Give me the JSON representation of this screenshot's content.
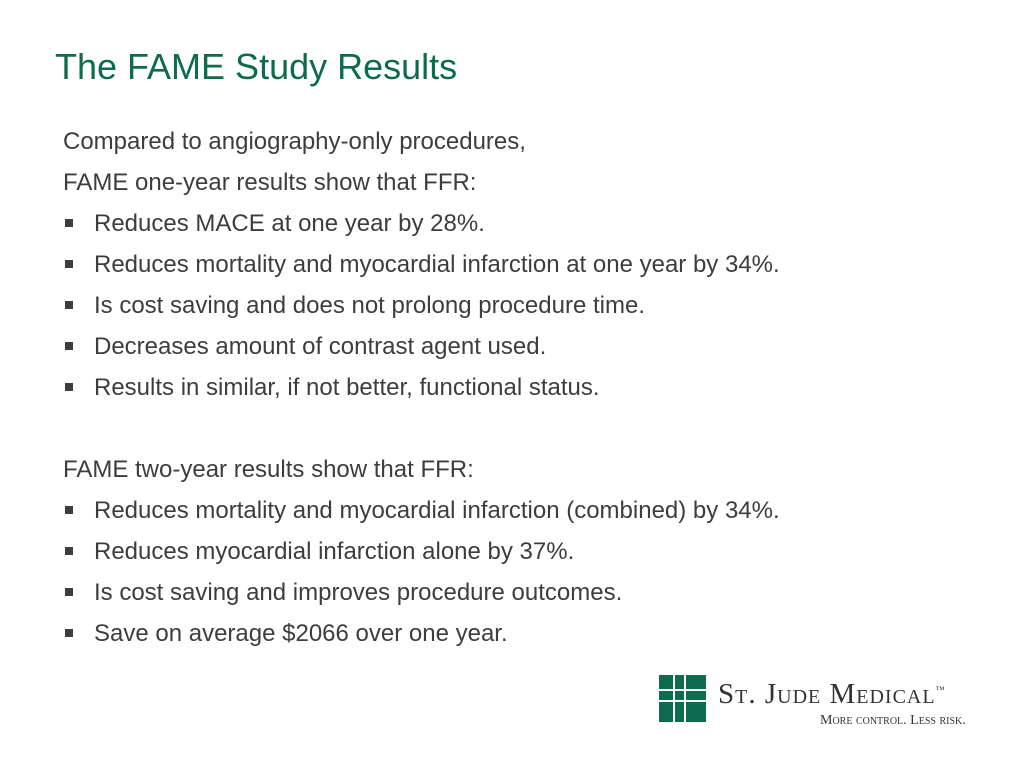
{
  "slide": {
    "title": "The FAME Study Results",
    "intro": [
      "Compared to angiography-only procedures,",
      "FAME one-year results show that FFR:"
    ],
    "one_year_bullets": [
      "Reduces MACE at one year by 28%.",
      "Reduces mortality and myocardial infarction at one year by 34%.",
      "Is cost saving and does not prolong procedure time.",
      "Decreases amount of contrast agent used.",
      "Results in similar, if not better, functional status."
    ],
    "two_year_heading": "FAME two-year results show that FFR:",
    "two_year_bullets": [
      "Reduces mortality and myocardial infarction (combined) by 34%.",
      "Reduces myocardial infarction alone by 37%.",
      "Is cost saving and improves procedure outcomes.",
      "Save on average $2066 over one year."
    ]
  },
  "logo": {
    "name": "St. Jude Medical",
    "trademark": "™",
    "tagline": "More control. Less risk.",
    "brand_color": "#0e6b4e",
    "icon": "grid-mark-icon"
  },
  "colors": {
    "title": "#0e6b4e",
    "body_text": "#3d3d3d",
    "background": "#ffffff"
  }
}
